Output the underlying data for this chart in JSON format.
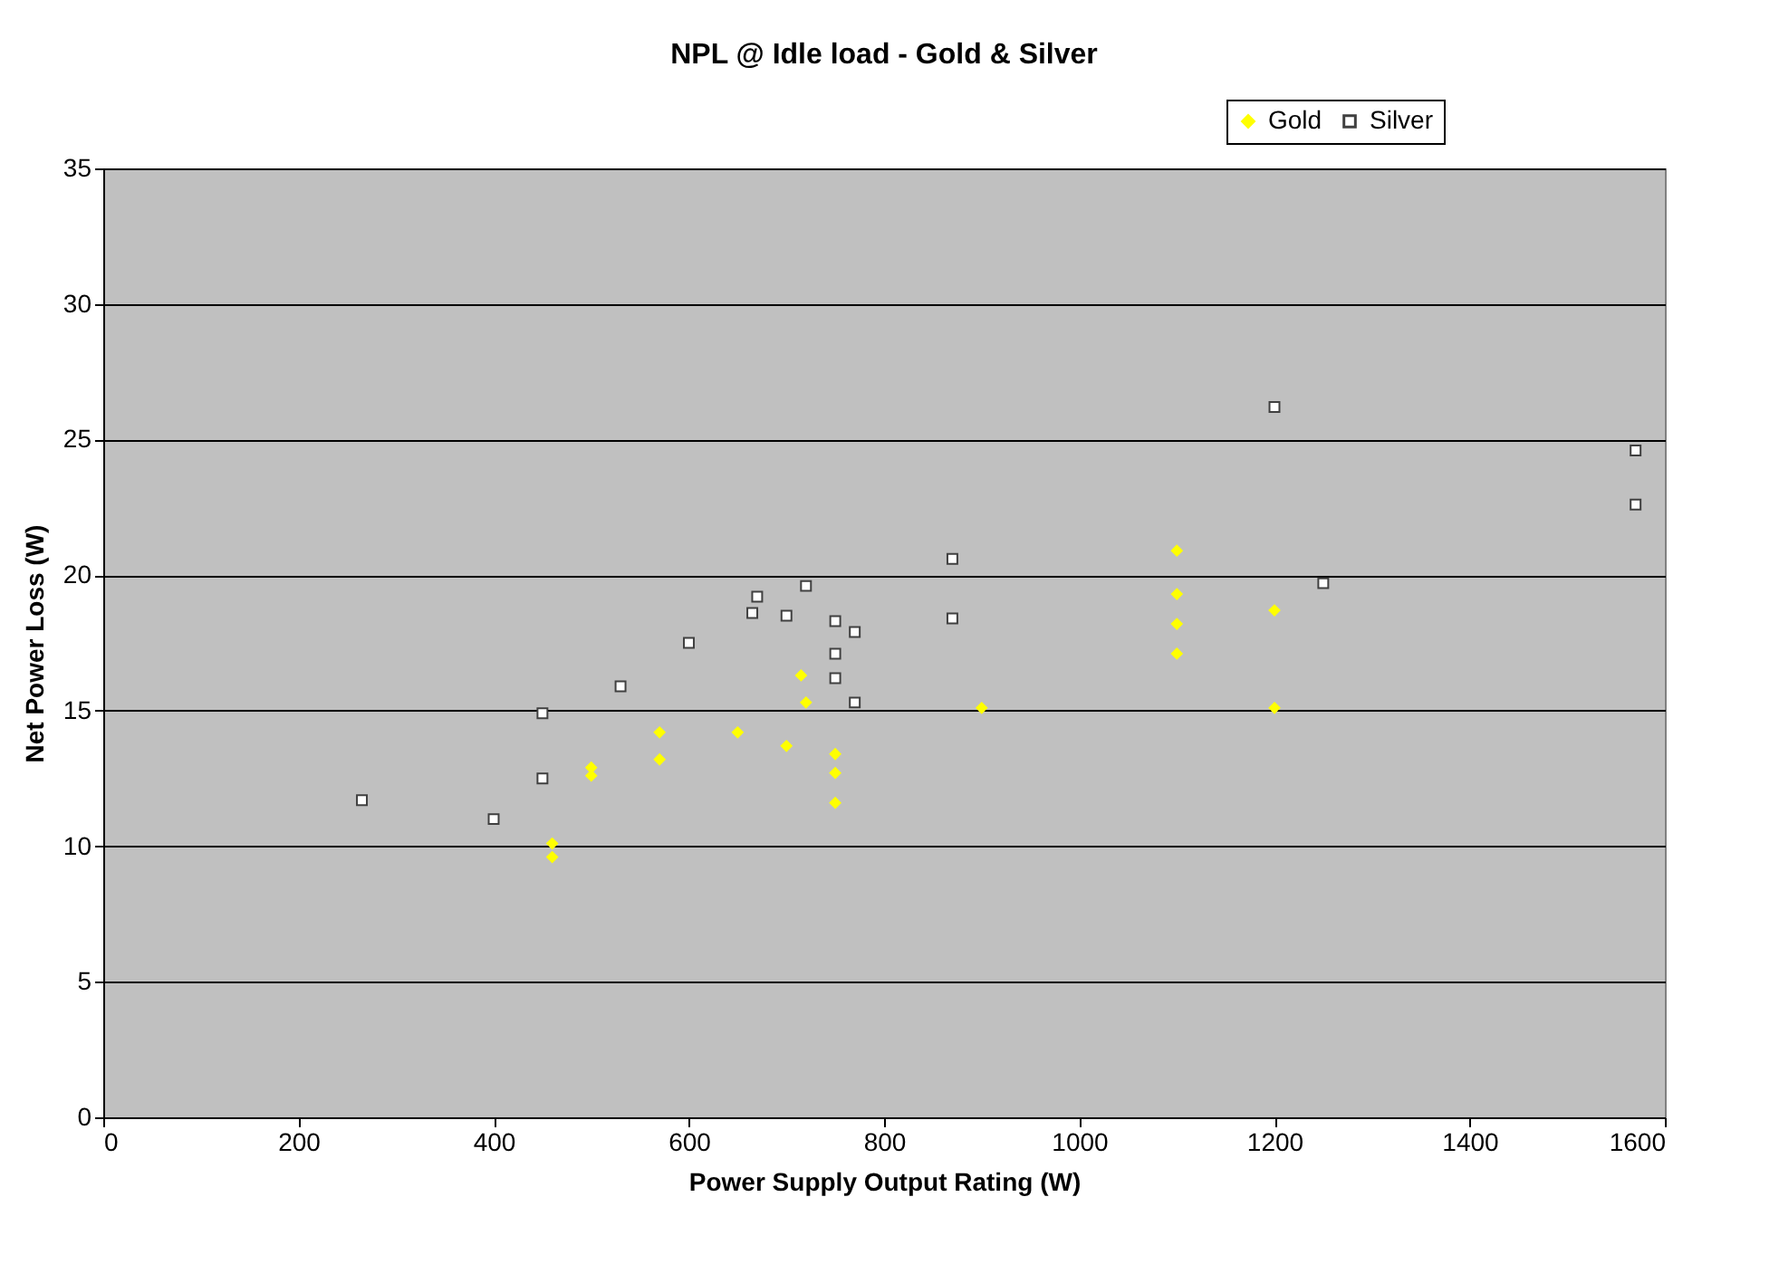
{
  "chart_data": {
    "type": "scatter",
    "title": "NPL @ Idle load - Gold & Silver",
    "xlabel": "Power Supply Output Rating (W)",
    "ylabel": "Net Power Loss (W)",
    "xlim": [
      0,
      1600
    ],
    "xticks": [
      0,
      200,
      400,
      600,
      800,
      1000,
      1200,
      1400,
      1600
    ],
    "ylim": [
      0,
      35
    ],
    "yticks": [
      0,
      5,
      10,
      15,
      20,
      25,
      30,
      35
    ],
    "grid": "y",
    "legend": "top right",
    "series": [
      {
        "name": "Gold",
        "color": "#ffff00",
        "marker": "diamond",
        "x": [
          460,
          460,
          500,
          500,
          570,
          570,
          650,
          700,
          715,
          720,
          750,
          750,
          750,
          900,
          1100,
          1100,
          1100,
          1100,
          1200,
          1200
        ],
        "values": [
          10.1,
          9.6,
          12.9,
          12.6,
          14.2,
          13.2,
          14.2,
          13.7,
          16.3,
          15.3,
          13.4,
          12.7,
          11.6,
          15.1,
          20.9,
          19.3,
          18.2,
          17.1,
          18.7,
          15.1
        ]
      },
      {
        "name": "Silver",
        "color": "#ffffff",
        "marker": "square",
        "x": [
          265,
          400,
          450,
          450,
          530,
          600,
          665,
          670,
          700,
          720,
          750,
          750,
          750,
          770,
          770,
          870,
          870,
          1200,
          1250,
          1570,
          1570
        ],
        "values": [
          11.7,
          11.0,
          14.9,
          12.5,
          15.9,
          17.5,
          18.6,
          19.2,
          18.5,
          19.6,
          18.3,
          17.1,
          16.2,
          17.9,
          15.3,
          20.6,
          18.4,
          26.2,
          19.7,
          24.6,
          22.6
        ]
      }
    ]
  }
}
